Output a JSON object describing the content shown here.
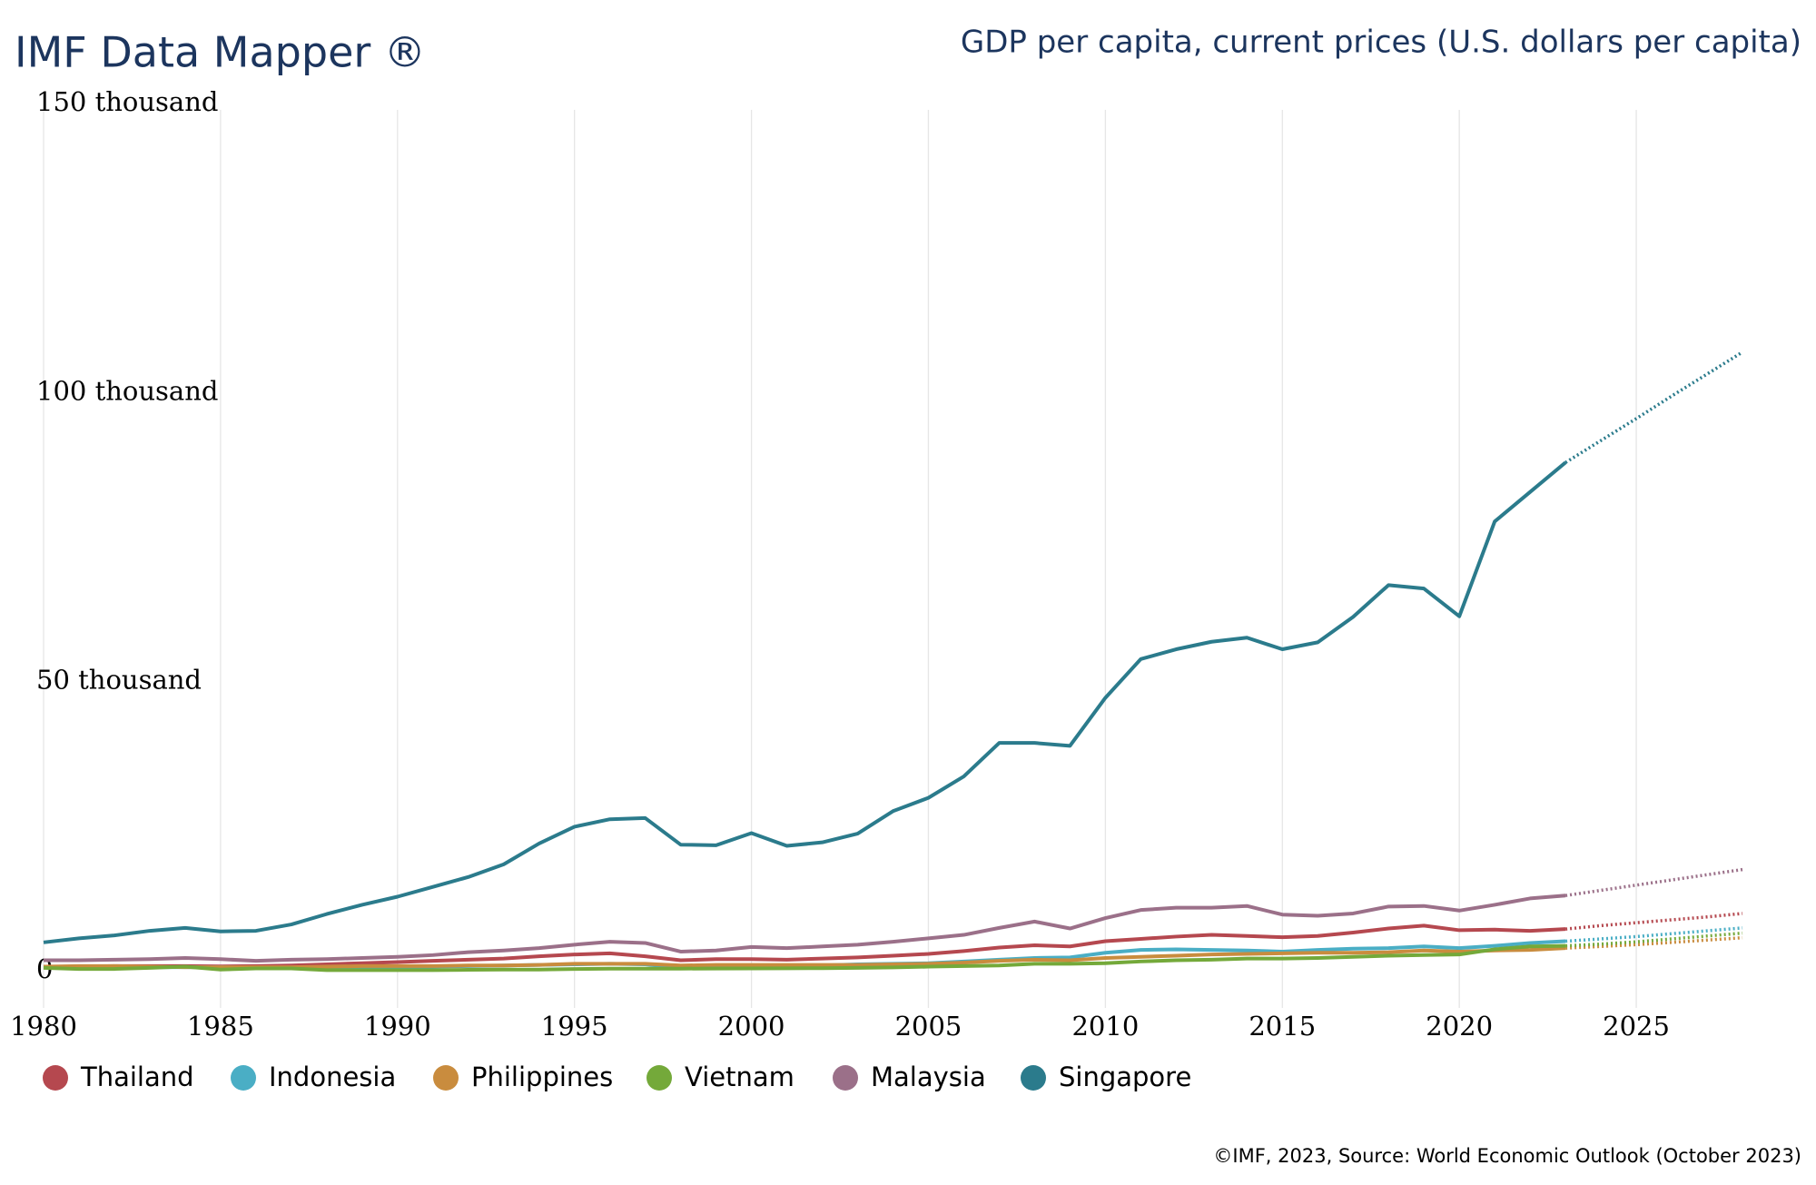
{
  "chart_data": {
    "type": "line",
    "title": "IMF Data Mapper ®",
    "subtitle": "GDP per capita, current prices (U.S. dollars per capita)",
    "source": "©IMF, 2023, Source: World Economic Outlook (October 2023)",
    "projection_start": 2023,
    "x": [
      1980,
      1981,
      1982,
      1983,
      1984,
      1985,
      1986,
      1987,
      1988,
      1989,
      1990,
      1991,
      1992,
      1993,
      1994,
      1995,
      1996,
      1997,
      1998,
      1999,
      2000,
      2001,
      2002,
      2003,
      2004,
      2005,
      2006,
      2007,
      2008,
      2009,
      2010,
      2011,
      2012,
      2013,
      2014,
      2015,
      2016,
      2017,
      2018,
      2019,
      2020,
      2021,
      2022,
      2023,
      2024,
      2025,
      2026,
      2027,
      2028
    ],
    "xlim": [
      1980,
      2028
    ],
    "xticks": [
      1980,
      1985,
      1990,
      1995,
      2000,
      2005,
      2010,
      2015,
      2020,
      2025
    ],
    "ylim": [
      0,
      150000
    ],
    "yticks": [
      {
        "value": 0,
        "label": "0"
      },
      {
        "value": 50000,
        "label": "50 thousand"
      },
      {
        "value": 100000,
        "label": "100 thousand"
      },
      {
        "value": 150000,
        "label": "150 thousand"
      }
    ],
    "grid": true,
    "series": [
      {
        "name": "Thailand",
        "color": "#b5484f",
        "values": [
          700,
          700,
          800,
          800,
          800,
          750,
          800,
          900,
          1100,
          1300,
          1500,
          1700,
          1900,
          2100,
          2500,
          2800,
          3000,
          2500,
          1800,
          2000,
          2000,
          1900,
          2100,
          2300,
          2600,
          2900,
          3400,
          4000,
          4400,
          4200,
          5100,
          5500,
          5900,
          6200,
          6000,
          5800,
          6000,
          6600,
          7300,
          7800,
          7000,
          7100,
          6900,
          7200,
          7800,
          8300,
          8800,
          9300,
          9900
        ]
      },
      {
        "name": "Indonesia",
        "color": "#4aaec5",
        "values": [
          600,
          700,
          700,
          600,
          600,
          600,
          500,
          500,
          600,
          600,
          700,
          700,
          800,
          900,
          1000,
          1100,
          1200,
          1100,
          500,
          700,
          800,
          800,
          900,
          1100,
          1200,
          1300,
          1600,
          1900,
          2200,
          2300,
          3100,
          3600,
          3700,
          3600,
          3500,
          3300,
          3600,
          3800,
          3900,
          4200,
          3900,
          4300,
          4800,
          5100,
          5500,
          5900,
          6400,
          6900,
          7400
        ]
      },
      {
        "name": "Philippines",
        "color": "#c98c3e",
        "values": [
          700,
          800,
          800,
          700,
          600,
          600,
          600,
          600,
          700,
          800,
          800,
          800,
          900,
          900,
          1000,
          1200,
          1200,
          1200,
          900,
          1000,
          1000,
          1000,
          1000,
          1000,
          1100,
          1200,
          1400,
          1700,
          1900,
          1800,
          2200,
          2400,
          2600,
          2800,
          2900,
          3000,
          3100,
          3100,
          3200,
          3500,
          3300,
          3500,
          3600,
          3900,
          4200,
          4500,
          4900,
          5300,
          5700
        ]
      },
      {
        "name": "Vietnam",
        "color": "#74a93a",
        "values": [
          500,
          300,
          300,
          500,
          700,
          200,
          400,
          400,
          100,
          100,
          100,
          100,
          150,
          200,
          200,
          300,
          350,
          360,
          360,
          370,
          390,
          410,
          440,
          490,
          560,
          700,
          800,
          900,
          1200,
          1200,
          1300,
          1600,
          1800,
          1900,
          2100,
          2100,
          2200,
          2400,
          2600,
          2700,
          2800,
          3700,
          4200,
          4300,
          4600,
          5000,
          5500,
          6000,
          6500
        ]
      },
      {
        "name": "Malaysia",
        "color": "#9b7089",
        "values": [
          1800,
          1800,
          1900,
          2000,
          2200,
          2000,
          1700,
          1900,
          2000,
          2200,
          2400,
          2700,
          3200,
          3500,
          3900,
          4500,
          5000,
          4800,
          3300,
          3500,
          4100,
          3900,
          4200,
          4500,
          5000,
          5600,
          6200,
          7400,
          8500,
          7300,
          9100,
          10500,
          10900,
          10900,
          11200,
          9700,
          9500,
          9900,
          11100,
          11200,
          10400,
          11400,
          12500,
          13000,
          13900,
          14800,
          15700,
          16600,
          17500
        ]
      },
      {
        "name": "Singapore",
        "color": "#2b7b8c",
        "values": [
          4900,
          5600,
          6100,
          6900,
          7400,
          6800,
          6900,
          8000,
          9800,
          11400,
          12800,
          14500,
          16200,
          18400,
          22000,
          24900,
          26200,
          26400,
          21800,
          21700,
          23800,
          21600,
          22200,
          23700,
          27600,
          29900,
          33600,
          39400,
          39400,
          38900,
          47200,
          53900,
          55600,
          56900,
          57600,
          55600,
          56800,
          61200,
          66700,
          66100,
          61300,
          77700,
          82800,
          87900,
          91700,
          95500,
          99400,
          103200,
          107000
        ]
      }
    ]
  }
}
